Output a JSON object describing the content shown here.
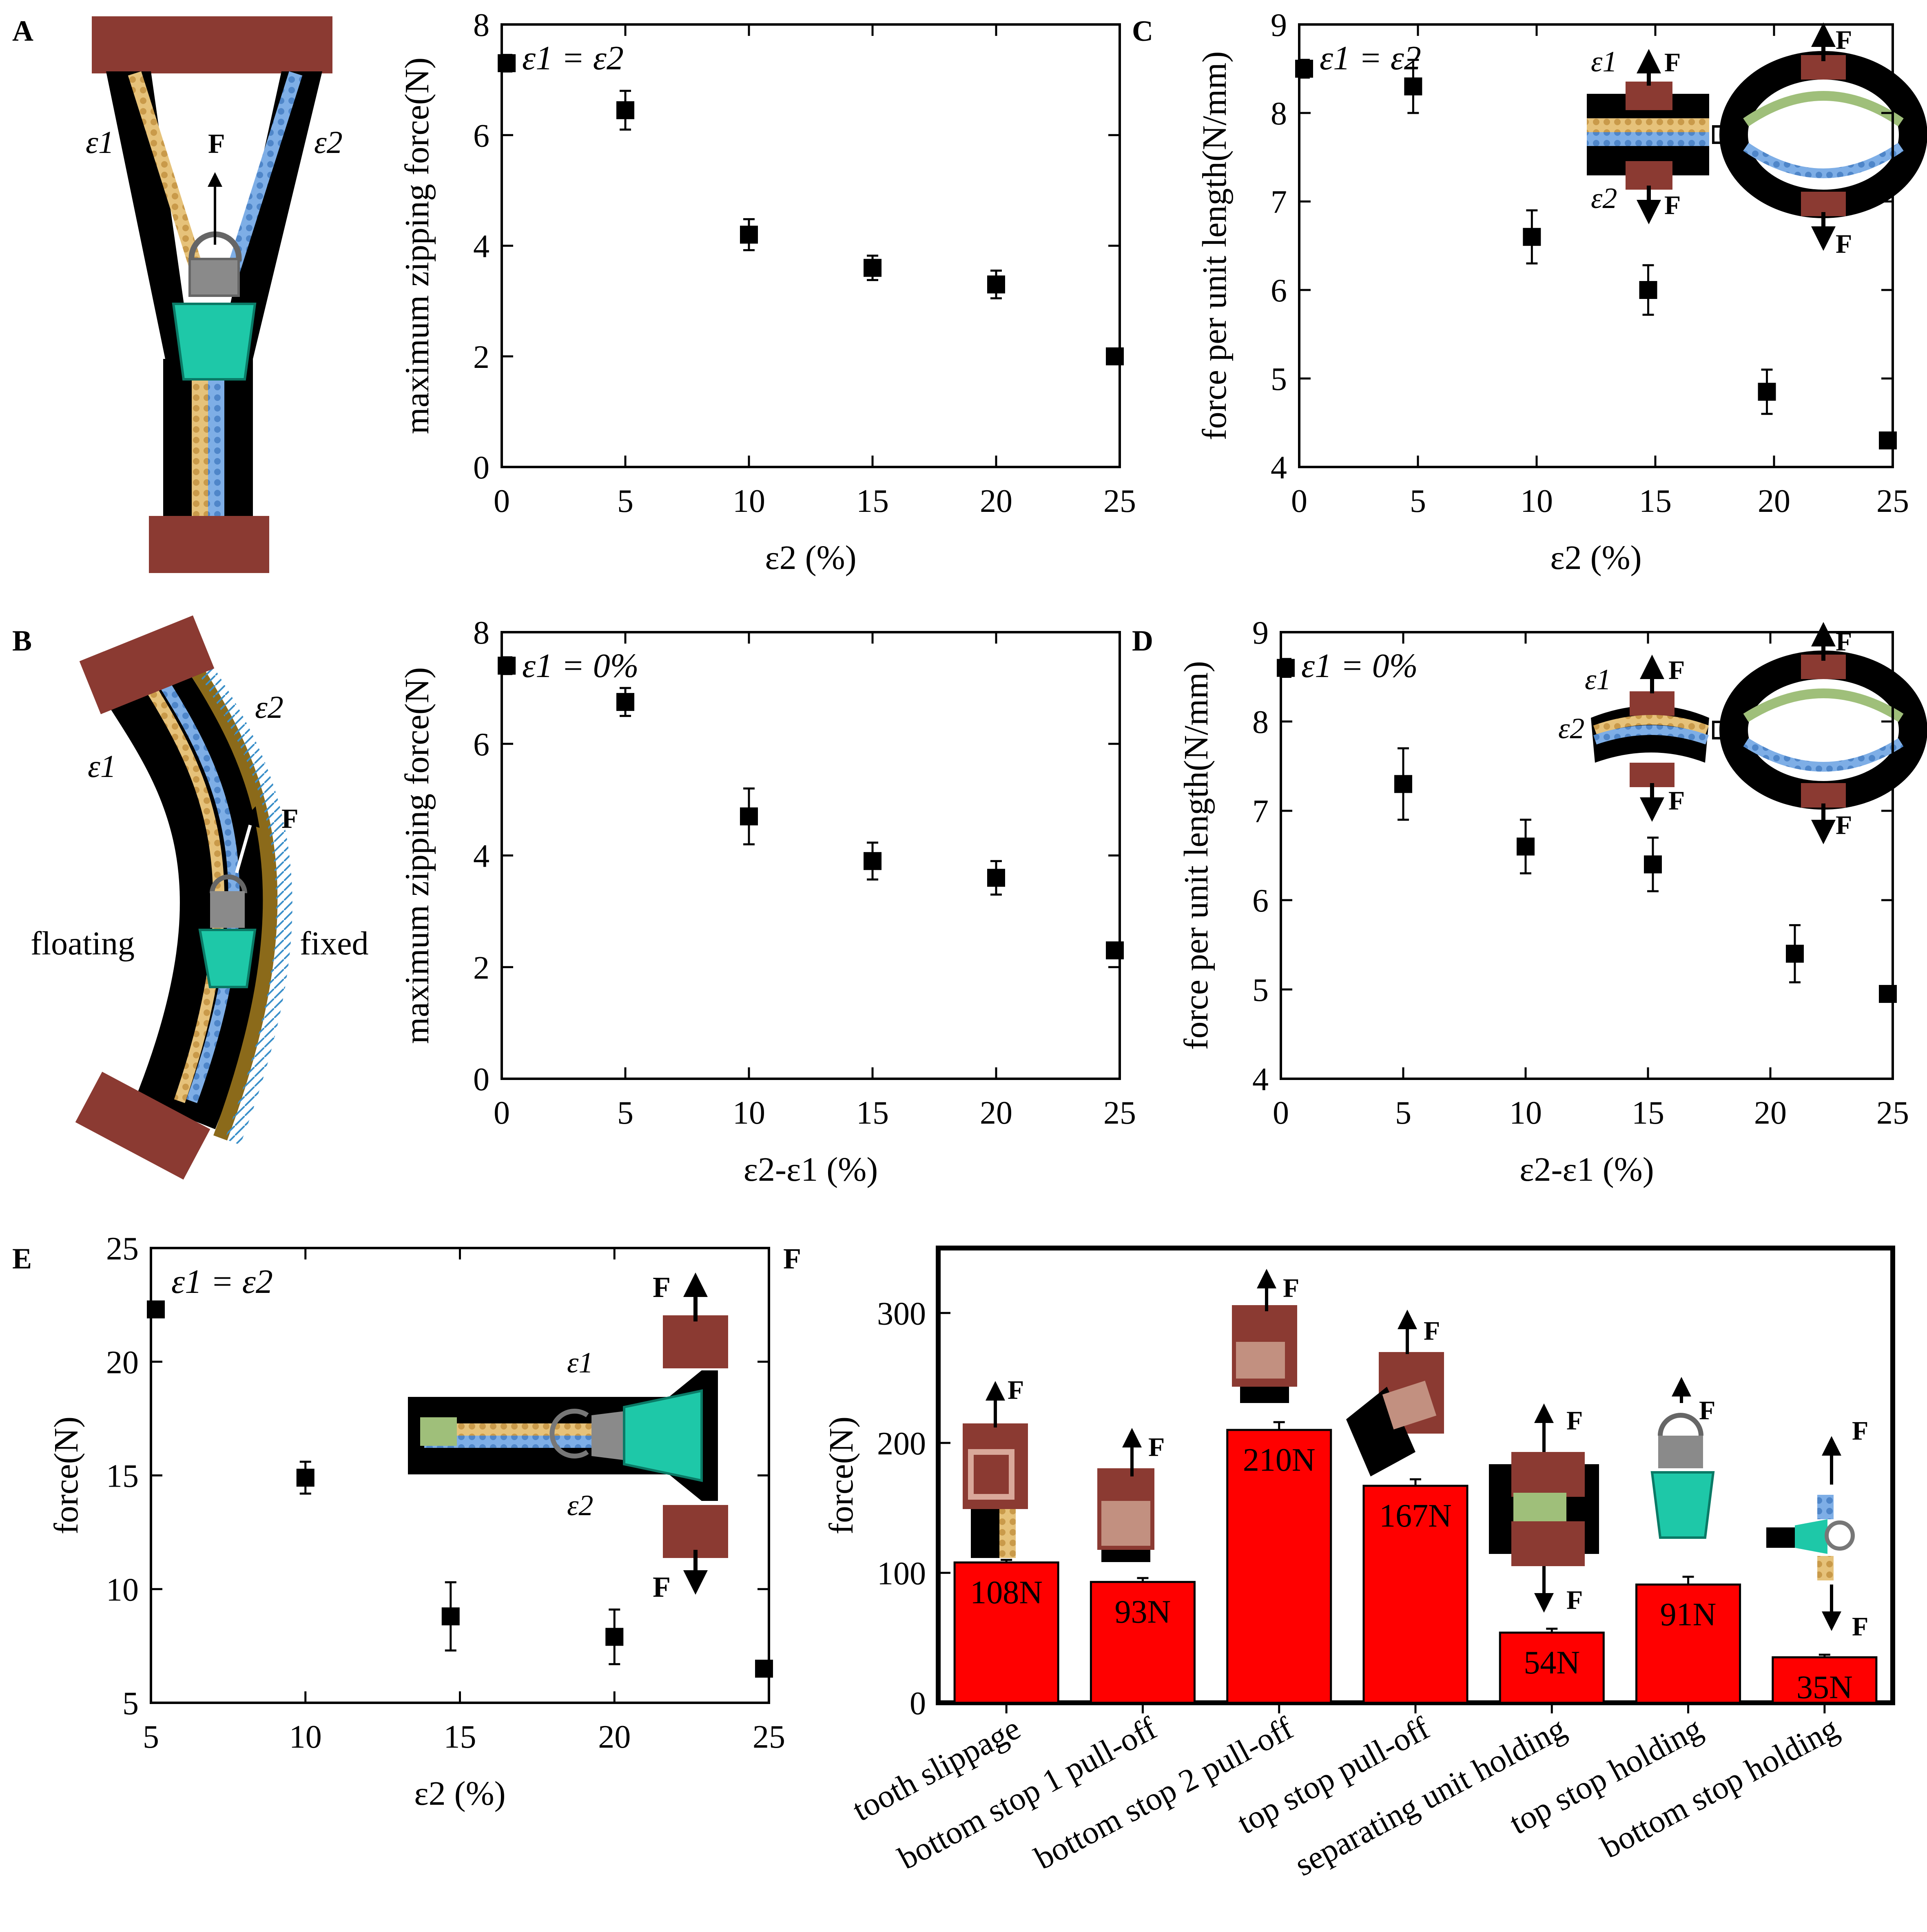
{
  "panel_letters": {
    "A": "A",
    "B": "B",
    "C": "C",
    "D": "D",
    "E": "E",
    "F": "F"
  },
  "schematic_A": {
    "eps1": "ε1",
    "eps2": "ε2",
    "force": "F"
  },
  "schematic_B": {
    "eps1": "ε1",
    "eps2": "ε2",
    "force": "F",
    "left_label": "floating",
    "right_label": "fixed"
  },
  "colors": {
    "marker": "#000000",
    "bar": "#ff0000",
    "clamp": "#8b3a32",
    "belt": "#000000",
    "slider": "#1ec8a8",
    "tooth_yellow": "#e6c27a",
    "tooth_blue": "#7eaee6",
    "tooth_green": "#9fbf7a",
    "fixed_strip": "#8b6a1a"
  },
  "chart_data": [
    {
      "id": "A",
      "type": "scatter",
      "annotation": "ε1 = ε2",
      "xlabel": "ε2 (%)",
      "ylabel": "maximum zipping force(N)",
      "xlim": [
        0,
        25
      ],
      "ylim": [
        0,
        8
      ],
      "xticks": [
        0,
        5,
        10,
        15,
        20,
        25
      ],
      "yticks": [
        0,
        2,
        4,
        6,
        8
      ],
      "x": [
        0.2,
        5,
        10,
        15,
        20,
        25
      ],
      "y": [
        7.3,
        6.45,
        4.2,
        3.6,
        3.3,
        2.0
      ],
      "yerr": [
        0.15,
        0.35,
        0.28,
        0.22,
        0.25,
        0.12
      ]
    },
    {
      "id": "C",
      "type": "scatter",
      "annotation": "ε1 = ε2",
      "xlabel": "ε2 (%)",
      "ylabel": "force per unit length(N/mm)",
      "xlim": [
        0,
        25
      ],
      "ylim": [
        4,
        9
      ],
      "xticks": [
        0,
        5,
        10,
        15,
        20,
        25
      ],
      "yticks": [
        4,
        5,
        6,
        7,
        8,
        9
      ],
      "x": [
        0,
        4.8,
        9.8,
        14.7,
        19.7,
        25
      ],
      "y": [
        8.5,
        8.3,
        6.6,
        6.0,
        4.85,
        4.3
      ],
      "yerr": [
        0.1,
        0.3,
        0.3,
        0.28,
        0.25,
        0.08
      ],
      "inset": {
        "eps1": "ε1",
        "eps2": "ε2",
        "force": "F"
      }
    },
    {
      "id": "B",
      "type": "scatter",
      "annotation": "ε1 = 0%",
      "xlabel": "ε2-ε1 (%)",
      "ylabel": "maximum zipping force(N)",
      "xlim": [
        0,
        25
      ],
      "ylim": [
        0,
        8
      ],
      "xticks": [
        0,
        5,
        10,
        15,
        20,
        25
      ],
      "yticks": [
        0,
        2,
        4,
        6,
        8
      ],
      "x": [
        0.2,
        5,
        10,
        15,
        20,
        25
      ],
      "y": [
        7.4,
        6.75,
        4.7,
        3.9,
        3.6,
        2.3
      ],
      "yerr": [
        0.15,
        0.25,
        0.5,
        0.33,
        0.3,
        0.12
      ]
    },
    {
      "id": "D",
      "type": "scatter",
      "annotation": "ε1 = 0%",
      "xlabel": "ε2-ε1 (%)",
      "ylabel": "force per unit length(N/mm)",
      "xlim": [
        0,
        25
      ],
      "ylim": [
        4,
        9
      ],
      "xticks": [
        0,
        5,
        10,
        15,
        20,
        25
      ],
      "yticks": [
        4,
        5,
        6,
        7,
        8,
        9
      ],
      "x": [
        0,
        5,
        10,
        15.2,
        21,
        25
      ],
      "y": [
        8.6,
        7.3,
        6.6,
        6.4,
        5.4,
        4.95
      ],
      "yerr": [
        0.1,
        0.4,
        0.3,
        0.3,
        0.32,
        0.08
      ],
      "inset": {
        "eps1": "ε1",
        "eps2": "ε2",
        "force": "F"
      }
    },
    {
      "id": "E",
      "type": "scatter",
      "annotation": "ε1 = ε2",
      "xlabel": "ε2 (%)",
      "ylabel": "force(N)",
      "xlim": [
        5,
        25
      ],
      "ylim": [
        5,
        25
      ],
      "xticks": [
        5,
        10,
        15,
        20,
        25
      ],
      "yticks": [
        5,
        10,
        15,
        20,
        25
      ],
      "x": [
        5.1,
        10,
        14.7,
        20,
        25
      ],
      "y": [
        22.3,
        14.9,
        8.8,
        7.9,
        6.5
      ],
      "yerr": [
        0.2,
        0.7,
        1.5,
        1.2,
        0.3
      ],
      "inset": {
        "eps1": "ε1",
        "eps2": "ε2",
        "force": "F"
      }
    },
    {
      "id": "F",
      "type": "bar",
      "ylabel": "force(N)",
      "ylim": [
        0,
        350
      ],
      "yticks": [
        0,
        100,
        200,
        300
      ],
      "categories": [
        "tooth slippage",
        "bottom stop 1 pull-off",
        "bottom stop 2 pull-off",
        "top stop pull-off",
        "separating unit holding",
        "top stop holding",
        "bottom stop holding"
      ],
      "values": [
        108,
        93,
        210,
        167,
        54,
        91,
        35
      ],
      "yerr": [
        2,
        3,
        6,
        5,
        3,
        6,
        2
      ],
      "labels": [
        "108N",
        "93N",
        "210N",
        "167N",
        "54N",
        "91N",
        "35N"
      ],
      "force_symbol": "F"
    }
  ]
}
